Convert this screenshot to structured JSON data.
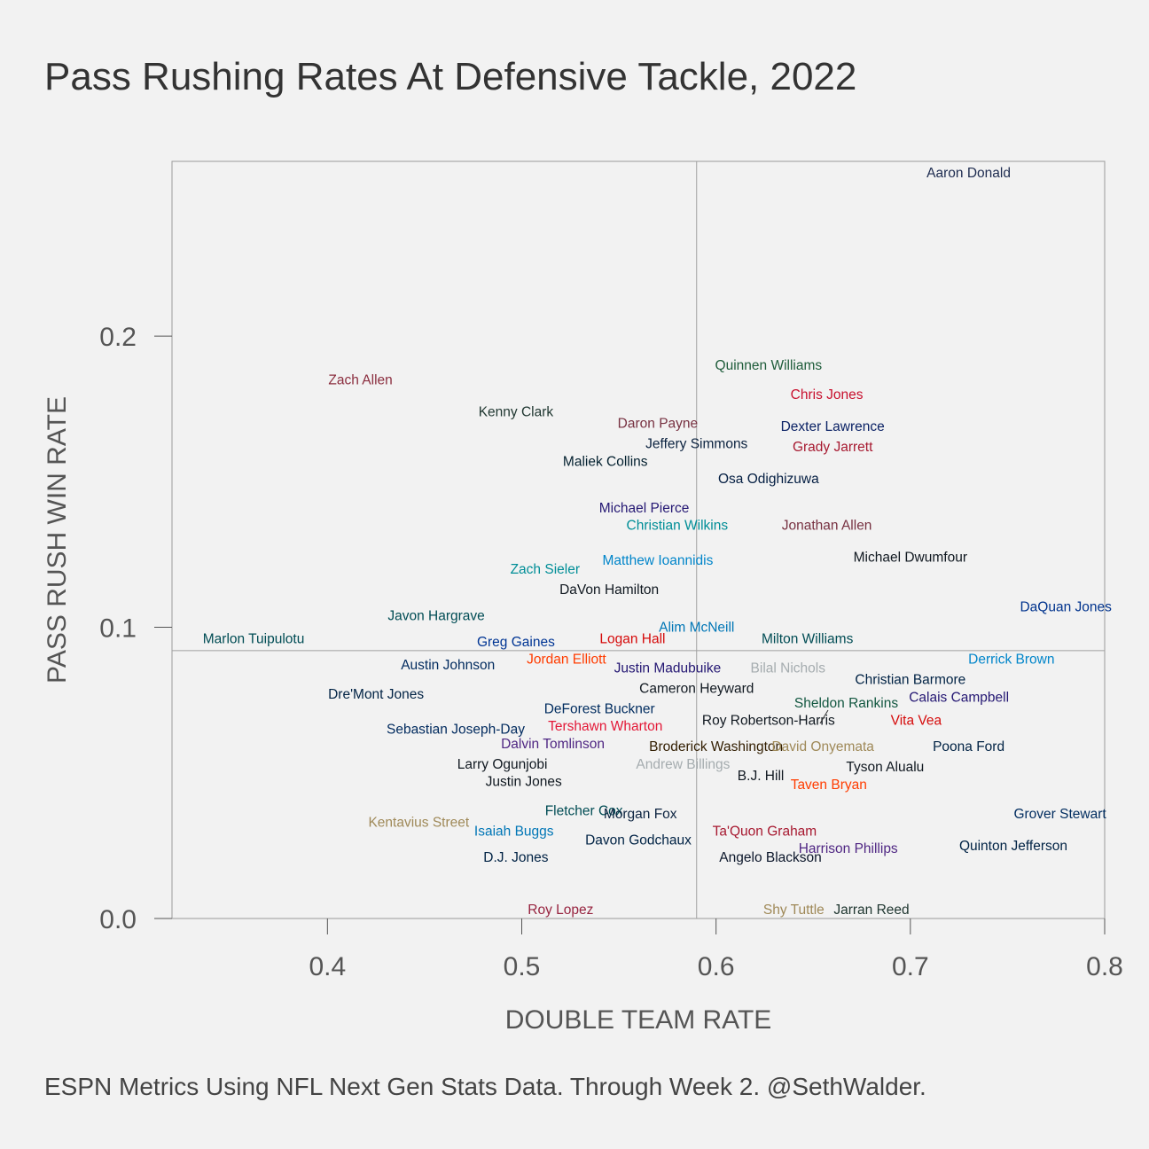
{
  "title": "Pass Rushing Rates At Defensive Tackle, 2022",
  "caption": "ESPN Metrics Using NFL Next Gen Stats Data. Through Week 2. @SethWalder.",
  "chart_data": {
    "type": "scatter",
    "title": "Pass Rushing Rates At Defensive Tackle, 2022",
    "xlabel": "DOUBLE TEAM RATE",
    "ylabel": "PASS RUSH WIN RATE",
    "xlim": [
      0.32,
      0.8
    ],
    "ylim": [
      0.0,
      0.26
    ],
    "xticks": [
      0.4,
      0.5,
      0.6,
      0.7,
      0.8
    ],
    "xtick_labels": [
      "0.4",
      "0.5",
      "0.6",
      "0.7",
      "0.8"
    ],
    "yticks": [
      0.0,
      0.1,
      0.2
    ],
    "ytick_labels": [
      "0.0",
      "0.1",
      "0.2"
    ],
    "reference_lines": {
      "x": 0.59,
      "y": 0.092
    },
    "grid": false,
    "points": [
      {
        "name": "Aaron Donald",
        "x": 0.73,
        "y": 0.256,
        "color": "#1d2b4f"
      },
      {
        "name": "Quinnen Williams",
        "x": 0.627,
        "y": 0.19,
        "color": "#1e5c3a"
      },
      {
        "name": "Zach Allen",
        "x": 0.417,
        "y": 0.185,
        "color": "#8b2e3f"
      },
      {
        "name": "Chris Jones",
        "x": 0.657,
        "y": 0.18,
        "color": "#c8102e"
      },
      {
        "name": "Kenny Clark",
        "x": 0.497,
        "y": 0.174,
        "color": "#203731"
      },
      {
        "name": "Daron Payne",
        "x": 0.57,
        "y": 0.17,
        "color": "#773141"
      },
      {
        "name": "Dexter Lawrence",
        "x": 0.66,
        "y": 0.169,
        "color": "#0b2265"
      },
      {
        "name": "Jeffery Simmons",
        "x": 0.59,
        "y": 0.163,
        "color": "#0c2340"
      },
      {
        "name": "Grady Jarrett",
        "x": 0.66,
        "y": 0.162,
        "color": "#a71930"
      },
      {
        "name": "Maliek Collins",
        "x": 0.543,
        "y": 0.157,
        "color": "#03202f"
      },
      {
        "name": "Osa Odighizuwa",
        "x": 0.627,
        "y": 0.151,
        "color": "#041e42"
      },
      {
        "name": "Michael Pierce",
        "x": 0.563,
        "y": 0.141,
        "color": "#241773"
      },
      {
        "name": "Christian Wilkins",
        "x": 0.58,
        "y": 0.135,
        "color": "#008e97"
      },
      {
        "name": "Jonathan Allen",
        "x": 0.657,
        "y": 0.135,
        "color": "#773141"
      },
      {
        "name": "Michael Dwumfour",
        "x": 0.7,
        "y": 0.124,
        "color": "#101820"
      },
      {
        "name": "Matthew Ioannidis",
        "x": 0.57,
        "y": 0.123,
        "color": "#0085ca"
      },
      {
        "name": "Zach Sieler",
        "x": 0.512,
        "y": 0.12,
        "color": "#008e97"
      },
      {
        "name": "DaVon Hamilton",
        "x": 0.545,
        "y": 0.113,
        "color": "#101820"
      },
      {
        "name": "DaQuan Jones",
        "x": 0.78,
        "y": 0.107,
        "color": "#00338d"
      },
      {
        "name": "Javon Hargrave",
        "x": 0.456,
        "y": 0.104,
        "color": "#004c54"
      },
      {
        "name": "Alim McNeill",
        "x": 0.59,
        "y": 0.1,
        "color": "#0076b6"
      },
      {
        "name": "Marlon Tuipulotu",
        "x": 0.362,
        "y": 0.096,
        "color": "#004c54"
      },
      {
        "name": "Greg Gaines",
        "x": 0.497,
        "y": 0.095,
        "color": "#003594"
      },
      {
        "name": "Logan Hall",
        "x": 0.557,
        "y": 0.096,
        "color": "#d50a0a"
      },
      {
        "name": "Milton Williams",
        "x": 0.647,
        "y": 0.096,
        "color": "#004c54"
      },
      {
        "name": "Austin Johnson",
        "x": 0.462,
        "y": 0.087,
        "color": "#002a5e"
      },
      {
        "name": "Jordan Elliott",
        "x": 0.523,
        "y": 0.089,
        "color": "#ff3c00"
      },
      {
        "name": "Derrick Brown",
        "x": 0.752,
        "y": 0.089,
        "color": "#0085ca"
      },
      {
        "name": "Justin Madubuike",
        "x": 0.575,
        "y": 0.086,
        "color": "#241773"
      },
      {
        "name": "Bilal Nichols",
        "x": 0.637,
        "y": 0.086,
        "color": "#a5acaf"
      },
      {
        "name": "Christian Barmore",
        "x": 0.7,
        "y": 0.082,
        "color": "#002244"
      },
      {
        "name": "Cameron Heyward",
        "x": 0.59,
        "y": 0.079,
        "color": "#101820"
      },
      {
        "name": "Dre'Mont Jones",
        "x": 0.425,
        "y": 0.077,
        "color": "#002244"
      },
      {
        "name": "Calais Campbell",
        "x": 0.725,
        "y": 0.076,
        "color": "#241773"
      },
      {
        "name": "Sheldon Rankins",
        "x": 0.667,
        "y": 0.074,
        "color": "#125740"
      },
      {
        "name": "DeForest Buckner",
        "x": 0.54,
        "y": 0.072,
        "color": "#002c5f"
      },
      {
        "name": "Roy Robertson-Harris",
        "x": 0.627,
        "y": 0.068,
        "color": "#101820"
      },
      {
        "name": "Vita Vea",
        "x": 0.703,
        "y": 0.068,
        "color": "#d50a0a"
      },
      {
        "name": "Tershawn Wharton",
        "x": 0.543,
        "y": 0.066,
        "color": "#e31837"
      },
      {
        "name": "Sebastian Joseph-Day",
        "x": 0.466,
        "y": 0.065,
        "color": "#002a5e"
      },
      {
        "name": "Dalvin Tomlinson",
        "x": 0.516,
        "y": 0.06,
        "color": "#4f2683"
      },
      {
        "name": "Broderick Washington",
        "x": 0.6,
        "y": 0.059,
        "color": "#311d00"
      },
      {
        "name": "David Onyemata",
        "x": 0.655,
        "y": 0.059,
        "color": "#9f8958"
      },
      {
        "name": "Poona Ford",
        "x": 0.73,
        "y": 0.059,
        "color": "#002244"
      },
      {
        "name": "Larry Ogunjobi",
        "x": 0.49,
        "y": 0.053,
        "color": "#101820"
      },
      {
        "name": "Andrew Billings",
        "x": 0.583,
        "y": 0.053,
        "color": "#a5acaf"
      },
      {
        "name": "Tyson Alualu",
        "x": 0.687,
        "y": 0.052,
        "color": "#101820"
      },
      {
        "name": "B.J. Hill",
        "x": 0.623,
        "y": 0.049,
        "color": "#101820"
      },
      {
        "name": "Taven Bryan",
        "x": 0.658,
        "y": 0.046,
        "color": "#ff3c00"
      },
      {
        "name": "Justin Jones",
        "x": 0.501,
        "y": 0.047,
        "color": "#101820"
      },
      {
        "name": "Grover Stewart",
        "x": 0.777,
        "y": 0.036,
        "color": "#002c5f"
      },
      {
        "name": "Fletcher Cox",
        "x": 0.532,
        "y": 0.037,
        "color": "#004c54"
      },
      {
        "name": "Morgan Fox",
        "x": 0.561,
        "y": 0.036,
        "color": "#0c2340"
      },
      {
        "name": "Kentavius Street",
        "x": 0.447,
        "y": 0.033,
        "color": "#9f8958"
      },
      {
        "name": "Isaiah Buggs",
        "x": 0.496,
        "y": 0.03,
        "color": "#0076b6"
      },
      {
        "name": "Ta'Quon Graham",
        "x": 0.625,
        "y": 0.03,
        "color": "#a71930"
      },
      {
        "name": "Davon Godchaux",
        "x": 0.56,
        "y": 0.027,
        "color": "#002244"
      },
      {
        "name": "Quinton Jefferson",
        "x": 0.753,
        "y": 0.025,
        "color": "#002244"
      },
      {
        "name": "Harrison Phillips",
        "x": 0.668,
        "y": 0.024,
        "color": "#4f2683"
      },
      {
        "name": "D.J. Jones",
        "x": 0.497,
        "y": 0.021,
        "color": "#002244"
      },
      {
        "name": "Angelo Blackson",
        "x": 0.628,
        "y": 0.021,
        "color": "#0b162a"
      },
      {
        "name": "Roy Lopez",
        "x": 0.52,
        "y": 0.003,
        "color": "#97233f"
      },
      {
        "name": "Shy Tuttle",
        "x": 0.64,
        "y": 0.003,
        "color": "#9f8958"
      },
      {
        "name": "Jarran Reed",
        "x": 0.68,
        "y": 0.003,
        "color": "#203731"
      }
    ]
  }
}
